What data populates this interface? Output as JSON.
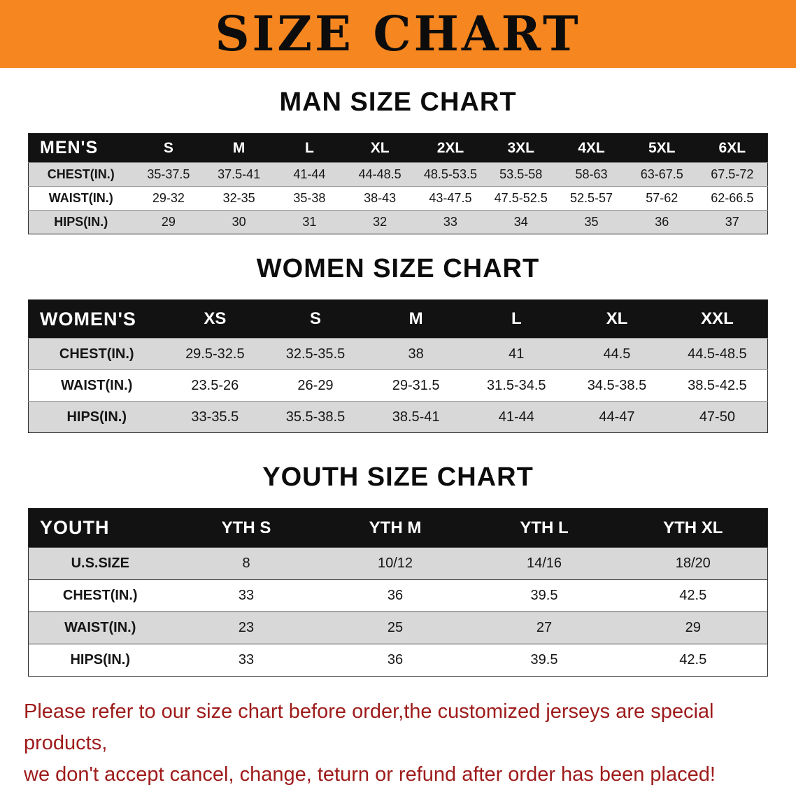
{
  "banner": {
    "title": "SIZE CHART"
  },
  "men": {
    "heading": "MAN SIZE CHART",
    "table": {
      "header": [
        "MEN'S",
        "S",
        "M",
        "L",
        "XL",
        "2XL",
        "3XL",
        "4XL",
        "5XL",
        "6XL"
      ],
      "rows": [
        [
          "CHEST(IN.)",
          "35-37.5",
          "37.5-41",
          "41-44",
          "44-48.5",
          "48.5-53.5",
          "53.5-58",
          "58-63",
          "63-67.5",
          "67.5-72"
        ],
        [
          "WAIST(IN.)",
          "29-32",
          "32-35",
          "35-38",
          "38-43",
          "43-47.5",
          "47.5-52.5",
          "52.5-57",
          "57-62",
          "62-66.5"
        ],
        [
          "HIPS(IN.)",
          "29",
          "30",
          "31",
          "32",
          "33",
          "34",
          "35",
          "36",
          "37"
        ]
      ]
    }
  },
  "women": {
    "heading": "WOMEN SIZE CHART",
    "table": {
      "header": [
        "WOMEN'S",
        "XS",
        "S",
        "M",
        "L",
        "XL",
        "XXL"
      ],
      "rows": [
        [
          "CHEST(IN.)",
          "29.5-32.5",
          "32.5-35.5",
          "38",
          "41",
          "44.5",
          "44.5-48.5"
        ],
        [
          "WAIST(IN.)",
          "23.5-26",
          "26-29",
          "29-31.5",
          "31.5-34.5",
          "34.5-38.5",
          "38.5-42.5"
        ],
        [
          "HIPS(IN.)",
          "33-35.5",
          "35.5-38.5",
          "38.5-41",
          "41-44",
          "44-47",
          "47-50"
        ]
      ]
    }
  },
  "youth": {
    "heading": "YOUTH SIZE CHART",
    "table": {
      "header": [
        "YOUTH",
        "YTH S",
        "YTH M",
        "YTH L",
        "YTH XL"
      ],
      "rows": [
        [
          "U.S.SIZE",
          "8",
          "10/12",
          "14/16",
          "18/20"
        ],
        [
          "CHEST(IN.)",
          "33",
          "36",
          "39.5",
          "42.5"
        ],
        [
          "WAIST(IN.)",
          "23",
          "25",
          "27",
          "29"
        ],
        [
          "HIPS(IN.)",
          "33",
          "36",
          "39.5",
          "42.5"
        ]
      ]
    }
  },
  "note": {
    "line1": "Please refer to our size chart before order,the customized jerseys are special products,",
    "line2": "we don't accept cancel, change, teturn or refund after order has been placed!"
  },
  "colors": {
    "banner_bg": "#f6861f",
    "banner_text": "#0c0c0c",
    "table_header_bg": "#121212",
    "table_header_text": "#ffffff",
    "row_stripe_bg": "#d8d8d8",
    "note_text": "#9e1b1b"
  }
}
